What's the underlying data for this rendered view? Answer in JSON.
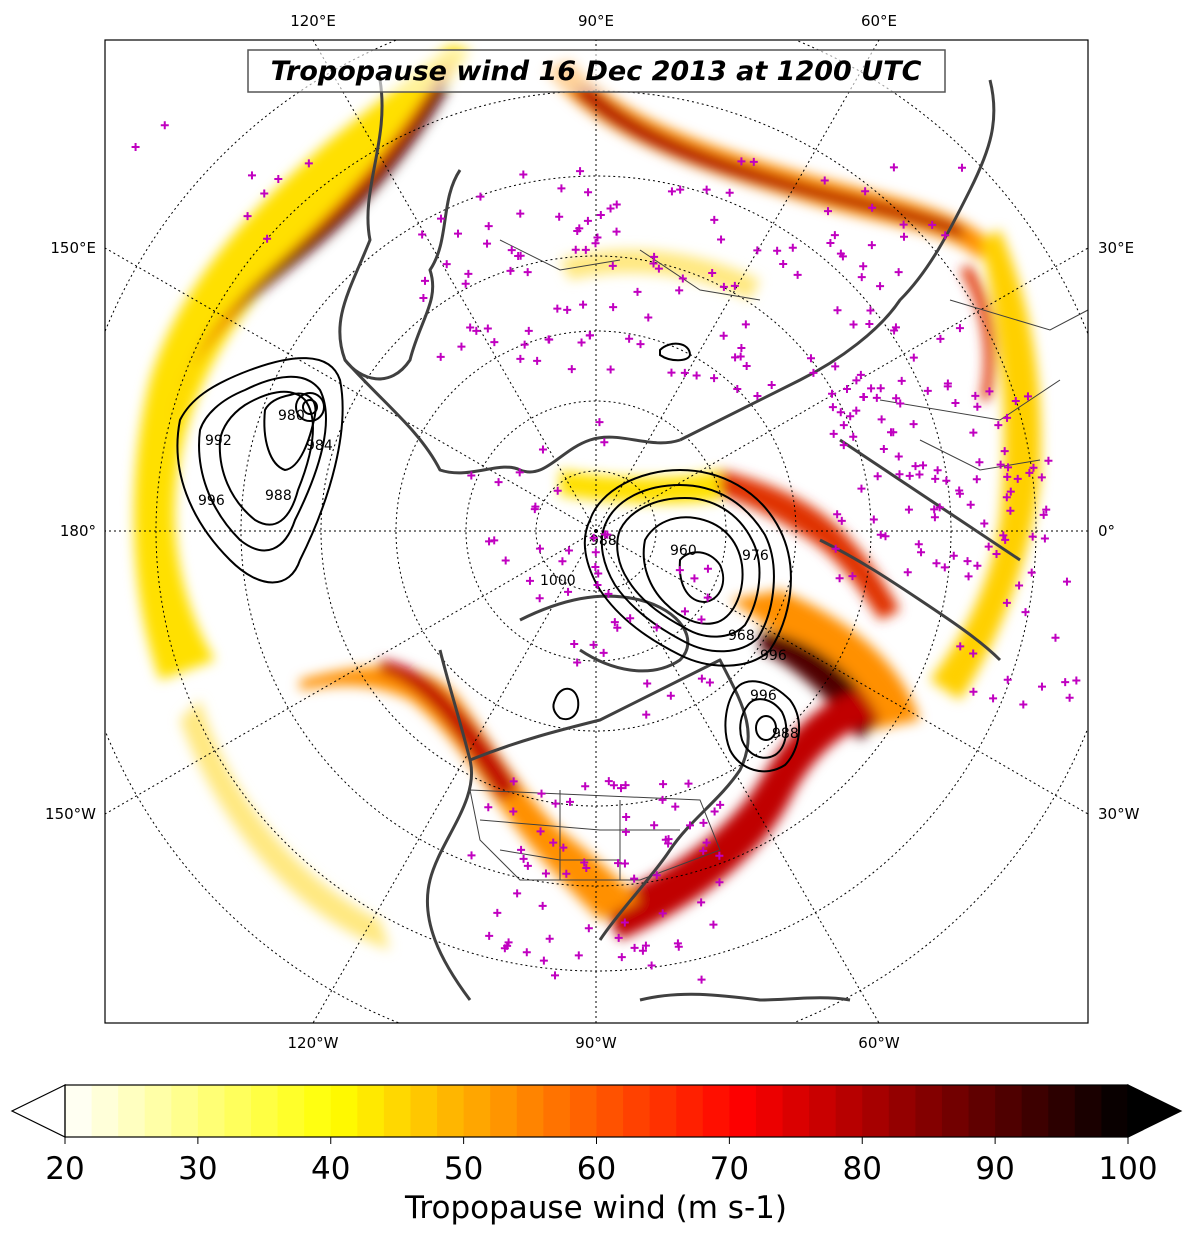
{
  "title": "Tropopause wind 16 Dec 2013 at 1200 UTC",
  "map": {
    "projection": "north polar stereographic",
    "top_labels": [
      "120°E",
      "90°E",
      "60°E"
    ],
    "bottom_labels": [
      "120°W",
      "90°W",
      "60°W"
    ],
    "left_labels": [
      "150°E",
      "180°",
      "150°W"
    ],
    "right_labels": [
      "30°E",
      "0°",
      "30°W"
    ],
    "station_marker_color": "#c000c0",
    "coastline_color": "#404040",
    "pressure_contour_labels": [
      "980",
      "984",
      "988",
      "992",
      "996",
      "1000",
      "960",
      "968",
      "976"
    ]
  },
  "colorbar": {
    "label": "Tropopause wind (m s-1)",
    "ticks": [
      "20",
      "30",
      "40",
      "50",
      "60",
      "70",
      "80",
      "90",
      "100"
    ],
    "min": 20,
    "max": 100,
    "extend": "both",
    "colormap": "hot_r"
  }
}
